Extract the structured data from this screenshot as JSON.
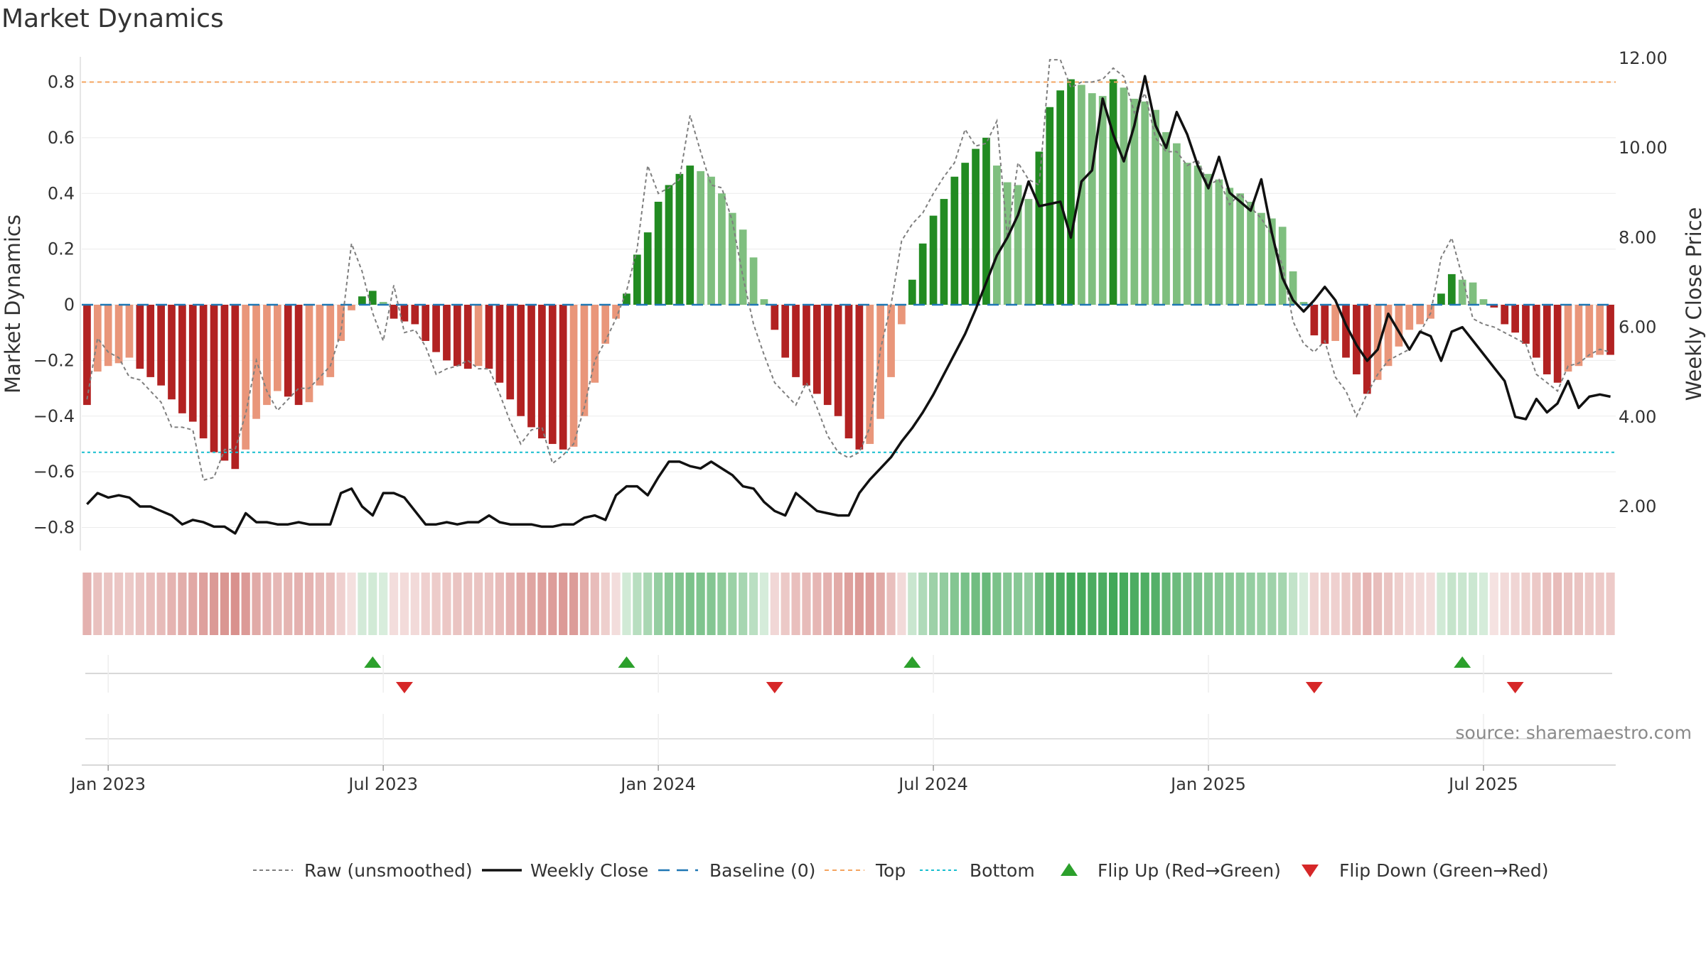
{
  "chart_data": {
    "type": "bar",
    "title": "Market Dynamics",
    "ylabel": "Market Dynamics",
    "y2label": "Weekly Close Price",
    "ylim": [
      -0.88,
      0.9
    ],
    "y2lim": [
      1.0,
      12.2
    ],
    "yticks": [
      -0.8,
      -0.6,
      -0.4,
      -0.2,
      0,
      0.2,
      0.4,
      0.6,
      0.8
    ],
    "ytick_labels": [
      "−0.8",
      "−0.6",
      "−0.4",
      "−0.2",
      "0",
      "0.2",
      "0.4",
      "0.6",
      "0.8"
    ],
    "y2ticks": [
      2,
      4,
      6,
      8,
      10,
      12
    ],
    "y2tick_labels": [
      "2.00",
      "4.00",
      "6.00",
      "8.00",
      "10.00",
      "12.00"
    ],
    "xticks": [
      {
        "label": "Jan 2023",
        "week": 0
      },
      {
        "label": "Jul 2023",
        "week": 26
      },
      {
        "label": "Jan 2024",
        "week": 52
      },
      {
        "label": "Jul 2024",
        "week": 78
      },
      {
        "label": "Jan 2025",
        "week": 104
      },
      {
        "label": "Jul 2025",
        "week": 130
      }
    ],
    "top_level": 0.8,
    "bottom_level": -0.53,
    "baseline": 0,
    "week_start": -2,
    "values": [
      -0.36,
      -0.24,
      -0.22,
      -0.21,
      -0.19,
      -0.23,
      -0.26,
      -0.29,
      -0.34,
      -0.39,
      -0.42,
      -0.48,
      -0.53,
      -0.56,
      -0.59,
      -0.52,
      -0.41,
      -0.36,
      -0.31,
      -0.33,
      -0.36,
      -0.35,
      -0.29,
      -0.26,
      -0.13,
      -0.02,
      0.03,
      0.05,
      0.01,
      -0.05,
      -0.06,
      -0.07,
      -0.13,
      -0.17,
      -0.2,
      -0.22,
      -0.23,
      -0.22,
      -0.23,
      -0.28,
      -0.34,
      -0.4,
      -0.44,
      -0.48,
      -0.5,
      -0.52,
      -0.51,
      -0.4,
      -0.28,
      -0.14,
      -0.05,
      0.04,
      0.18,
      0.26,
      0.37,
      0.43,
      0.47,
      0.5,
      0.48,
      0.46,
      0.4,
      0.33,
      0.27,
      0.17,
      0.02,
      -0.09,
      -0.19,
      -0.26,
      -0.29,
      -0.32,
      -0.36,
      -0.4,
      -0.48,
      -0.52,
      -0.5,
      -0.41,
      -0.26,
      -0.07,
      0.09,
      0.22,
      0.32,
      0.38,
      0.46,
      0.51,
      0.56,
      0.6,
      0.5,
      0.44,
      0.43,
      0.38,
      0.55,
      0.71,
      0.77,
      0.81,
      0.79,
      0.76,
      0.75,
      0.81,
      0.78,
      0.74,
      0.73,
      0.7,
      0.62,
      0.58,
      0.51,
      0.5,
      0.47,
      0.45,
      0.42,
      0.4,
      0.37,
      0.33,
      0.31,
      0.28,
      0.12,
      0.01,
      -0.11,
      -0.14,
      -0.13,
      -0.19,
      -0.25,
      -0.32,
      -0.27,
      -0.22,
      -0.15,
      -0.09,
      -0.07,
      -0.05,
      0.04,
      0.11,
      0.09,
      0.08,
      0.02,
      -0.01,
      -0.07,
      -0.1,
      -0.14,
      -0.19,
      -0.25,
      -0.28,
      -0.24,
      -0.22,
      -0.19,
      -0.18,
      -0.18
    ],
    "raw": [
      -0.34,
      -0.12,
      -0.17,
      -0.19,
      -0.26,
      -0.27,
      -0.31,
      -0.35,
      -0.44,
      -0.44,
      -0.45,
      -0.63,
      -0.62,
      -0.52,
      -0.52,
      -0.39,
      -0.2,
      -0.31,
      -0.38,
      -0.34,
      -0.3,
      -0.3,
      -0.26,
      -0.22,
      -0.1,
      0.22,
      0.12,
      -0.03,
      -0.13,
      0.07,
      -0.1,
      -0.09,
      -0.15,
      -0.25,
      -0.23,
      -0.22,
      -0.2,
      -0.23,
      -0.23,
      -0.32,
      -0.42,
      -0.5,
      -0.45,
      -0.44,
      -0.57,
      -0.54,
      -0.5,
      -0.37,
      -0.2,
      -0.13,
      -0.05,
      0.05,
      0.2,
      0.5,
      0.4,
      0.42,
      0.45,
      0.68,
      0.55,
      0.43,
      0.42,
      0.3,
      0.1,
      -0.07,
      -0.18,
      -0.28,
      -0.32,
      -0.36,
      -0.28,
      -0.37,
      -0.47,
      -0.53,
      -0.55,
      -0.53,
      -0.44,
      -0.16,
      0.0,
      0.23,
      0.29,
      0.33,
      0.4,
      0.46,
      0.51,
      0.63,
      0.57,
      0.58,
      0.66,
      0.24,
      0.51,
      0.45,
      0.43,
      0.88,
      0.88,
      0.78,
      0.8,
      0.8,
      0.81,
      0.85,
      0.82,
      0.69,
      0.76,
      0.6,
      0.55,
      0.55,
      0.5,
      0.52,
      0.43,
      0.45,
      0.36,
      0.4,
      0.35,
      0.31,
      0.25,
      0.14,
      -0.06,
      -0.14,
      -0.17,
      -0.13,
      -0.26,
      -0.31,
      -0.4,
      -0.32,
      -0.25,
      -0.2,
      -0.18,
      -0.16,
      -0.1,
      -0.03,
      0.17,
      0.24,
      0.1,
      -0.05,
      -0.07,
      -0.08,
      -0.1,
      -0.12,
      -0.14,
      -0.25,
      -0.28,
      -0.31,
      -0.22,
      -0.21,
      -0.18,
      -0.16,
      -0.17
    ],
    "close": [
      2.05,
      2.3,
      2.2,
      2.25,
      2.2,
      2.0,
      2.0,
      1.9,
      1.8,
      1.6,
      1.7,
      1.65,
      1.55,
      1.55,
      1.4,
      1.85,
      1.65,
      1.65,
      1.6,
      1.6,
      1.65,
      1.6,
      1.6,
      1.6,
      2.3,
      2.4,
      2.0,
      1.8,
      2.3,
      2.3,
      2.2,
      1.9,
      1.6,
      1.6,
      1.65,
      1.6,
      1.65,
      1.65,
      1.8,
      1.65,
      1.6,
      1.6,
      1.6,
      1.55,
      1.55,
      1.6,
      1.6,
      1.75,
      1.8,
      1.7,
      2.25,
      2.45,
      2.45,
      2.25,
      2.65,
      3.0,
      3.0,
      2.9,
      2.85,
      3.0,
      2.85,
      2.7,
      2.45,
      2.4,
      2.1,
      1.9,
      1.8,
      2.3,
      2.1,
      1.9,
      1.85,
      1.8,
      1.8,
      2.3,
      2.6,
      2.85,
      3.1,
      3.45,
      3.75,
      4.1,
      4.5,
      4.95,
      5.4,
      5.85,
      6.4,
      7.0,
      7.6,
      8.0,
      8.5,
      9.25,
      8.7,
      8.75,
      8.8,
      8.0,
      9.25,
      9.5,
      11.1,
      10.3,
      9.7,
      10.5,
      11.6,
      10.5,
      10.0,
      10.8,
      10.3,
      9.6,
      9.1,
      9.8,
      9.0,
      8.8,
      8.6,
      9.3,
      8.1,
      7.1,
      6.6,
      6.35,
      6.6,
      6.9,
      6.6,
      6.05,
      5.6,
      5.25,
      5.5,
      6.3,
      5.9,
      5.5,
      5.9,
      5.8,
      5.25,
      5.9,
      6.0,
      5.7,
      5.4,
      5.1,
      4.8,
      4.0,
      3.95,
      4.4,
      4.1,
      4.3,
      4.8,
      4.2,
      4.45,
      4.5,
      4.45
    ],
    "flip_up_weeks": [
      25,
      49,
      76,
      128
    ],
    "flip_down_weeks": [
      28,
      63,
      114,
      133
    ],
    "colors": {
      "strong_green": "#228b22",
      "light_green": "#7fbf7f",
      "strong_red": "#b22222",
      "light_red": "#e9967a",
      "top_line": "#f4a460",
      "bottom_line": "#17becf",
      "baseline": "#1f77b4",
      "raw_line": "#7f7f7f",
      "close_line": "#111111",
      "flip_up_marker": "#2ca02c",
      "flip_down_marker": "#d62728"
    },
    "legend": [
      {
        "key": "raw",
        "label": "Raw (unsmoothed)"
      },
      {
        "key": "close",
        "label": "Weekly Close"
      },
      {
        "key": "baseline",
        "label": "Baseline (0)"
      },
      {
        "key": "top",
        "label": "Top"
      },
      {
        "key": "bottom",
        "label": "Bottom"
      },
      {
        "key": "flipup",
        "label": "Flip Up (Red→Green)"
      },
      {
        "key": "flipdown",
        "label": "Flip Down (Green→Red)"
      }
    ],
    "legend_position": "bottom-center",
    "source": "source: sharemaestro.com"
  }
}
